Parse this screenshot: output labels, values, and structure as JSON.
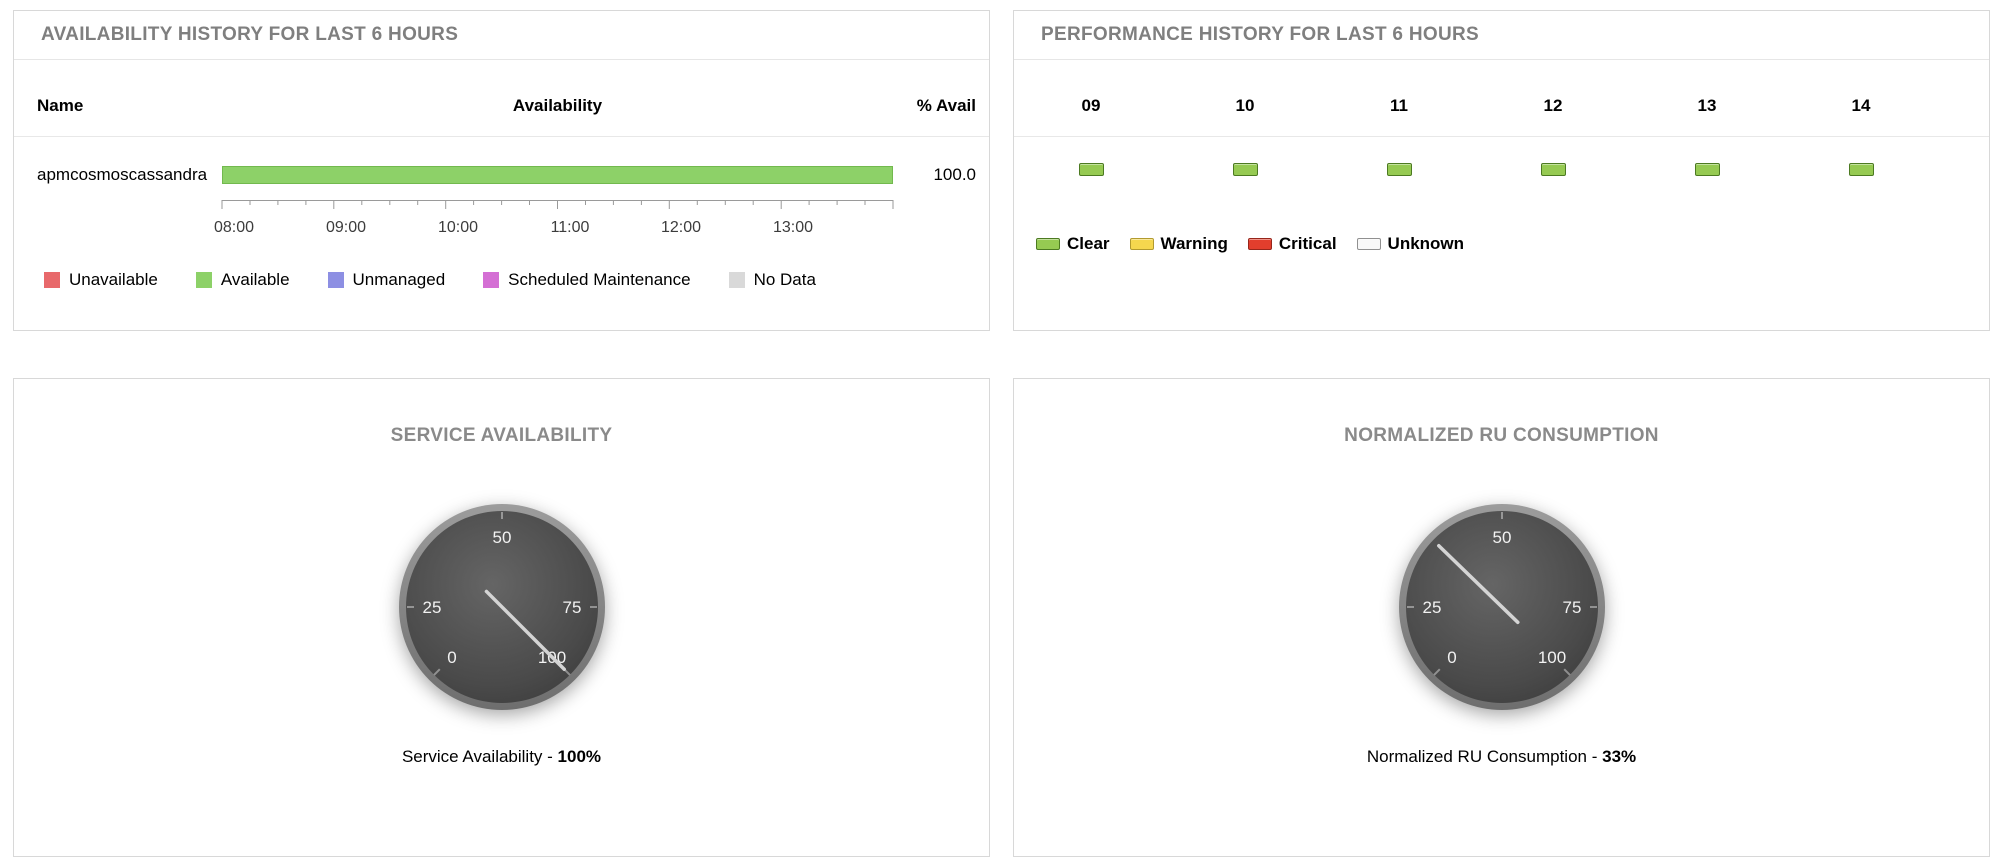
{
  "availability_panel": {
    "title": "AVAILABILITY HISTORY FOR LAST 6 HOURS",
    "columns": {
      "name": "Name",
      "availability": "Availability",
      "percent": "% Avail"
    },
    "row": {
      "name": "apmcosmoscassandra",
      "percent_label": "100.0",
      "percent_value": 100,
      "bar_color": "#8dd168"
    },
    "time_ticks": [
      "08:00",
      "09:00",
      "10:00",
      "11:00",
      "12:00",
      "13:00"
    ],
    "legend": [
      {
        "label": "Unavailable",
        "color": "#e8696b"
      },
      {
        "label": "Available",
        "color": "#8dd168"
      },
      {
        "label": "Unmanaged",
        "color": "#8d8fe3"
      },
      {
        "label": "Scheduled Maintenance",
        "color": "#d46fd4"
      },
      {
        "label": "No Data",
        "color": "#d9d9d9"
      }
    ]
  },
  "performance_panel": {
    "title": "PERFORMANCE HISTORY FOR LAST 6 HOURS",
    "hours": [
      {
        "label": "09",
        "status": "Clear",
        "color": "#96ca52",
        "border": "#4c7a21"
      },
      {
        "label": "10",
        "status": "Clear",
        "color": "#96ca52",
        "border": "#4c7a21"
      },
      {
        "label": "11",
        "status": "Clear",
        "color": "#96ca52",
        "border": "#4c7a21"
      },
      {
        "label": "12",
        "status": "Clear",
        "color": "#96ca52",
        "border": "#4c7a21"
      },
      {
        "label": "13",
        "status": "Clear",
        "color": "#96ca52",
        "border": "#4c7a21"
      },
      {
        "label": "14",
        "status": "Clear",
        "color": "#96ca52",
        "border": "#4c7a21"
      }
    ],
    "legend": [
      {
        "label": "Clear",
        "color": "#96ca52",
        "border": "#4c7a21"
      },
      {
        "label": "Warning",
        "color": "#f5d74e",
        "border": "#b29a2e"
      },
      {
        "label": "Critical",
        "color": "#e23e2d",
        "border": "#97261b"
      },
      {
        "label": "Unknown",
        "color": "#f8f8f8",
        "border": "#909090"
      }
    ]
  },
  "gauge_scale": [
    "0",
    "25",
    "50",
    "75",
    "100"
  ],
  "gauges": [
    {
      "title": "SERVICE AVAILABILITY",
      "caption_prefix": "Service Availability - ",
      "value_label": "100%",
      "value": 100
    },
    {
      "title": "NORMALIZED RU CONSUMPTION",
      "caption_prefix": "Normalized RU Consumption - ",
      "value_label": "33%",
      "value": 33
    }
  ]
}
